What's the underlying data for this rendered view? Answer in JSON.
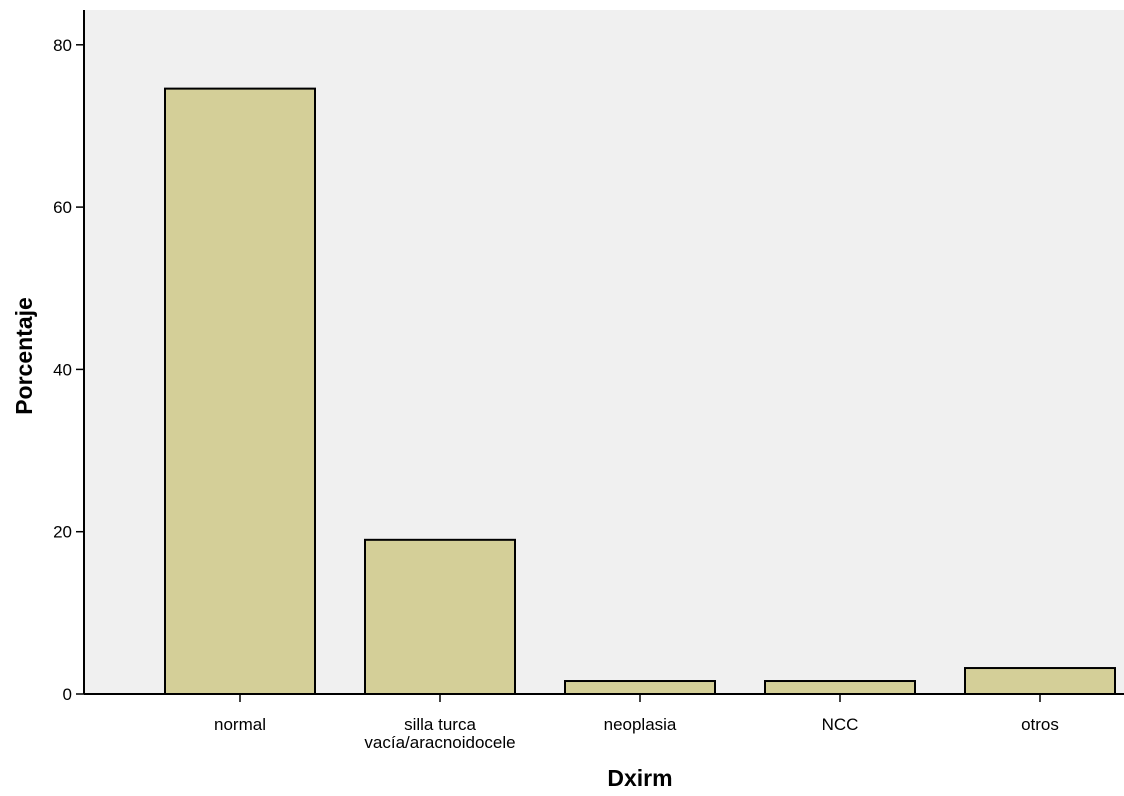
{
  "chart_data": {
    "type": "bar",
    "categories": [
      [
        "normal"
      ],
      [
        "silla turca",
        "vacía/aracnoidocele"
      ],
      [
        "neoplasia"
      ],
      [
        "NCC"
      ],
      [
        "otros"
      ]
    ],
    "values": [
      74.6,
      19.0,
      1.6,
      1.6,
      3.2
    ],
    "title": "",
    "xlabel": "Dxirm",
    "ylabel": "Porcentaje",
    "ylim": [
      0,
      84
    ],
    "yticks": [
      0,
      20,
      40,
      60,
      80
    ],
    "grid": false,
    "colors": {
      "plot_background": "#f0f0f0",
      "bar_fill": "#d4cf98",
      "bar_stroke": "#000000"
    }
  }
}
